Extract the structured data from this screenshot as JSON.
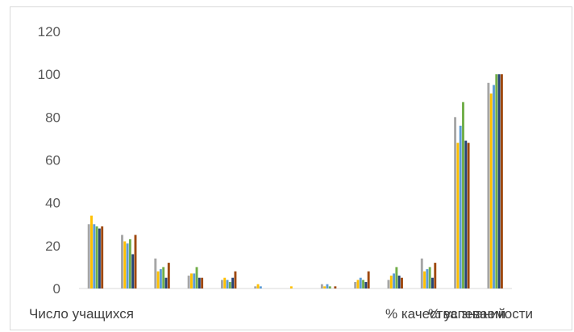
{
  "chart_data": {
    "type": "bar",
    "title": "",
    "xlabel": "",
    "ylabel": "",
    "ylim": [
      0,
      120
    ],
    "yticks": [
      0,
      20,
      40,
      60,
      80,
      100,
      120
    ],
    "grid": false,
    "legend": "none",
    "categories": [
      "Число учащихся",
      "",
      "",
      "",
      "",
      "",
      "",
      "",
      "",
      "",
      "",
      "% качества знаний",
      "% успеваемости"
    ],
    "series": [
      {
        "color": "#a5a5a5",
        "values": [
          30,
          25,
          14,
          6,
          4,
          1,
          0,
          2,
          3,
          4,
          14,
          80,
          96
        ]
      },
      {
        "color": "#ffc000",
        "values": [
          34,
          22,
          8,
          7,
          5,
          2,
          1,
          1,
          4,
          6,
          8,
          68,
          91
        ]
      },
      {
        "color": "#5b9bd5",
        "values": [
          30,
          21,
          9,
          7,
          4,
          1,
          0,
          2,
          5,
          7,
          9,
          76,
          95
        ]
      },
      {
        "color": "#70ad47",
        "values": [
          29,
          23,
          10,
          10,
          3,
          0,
          0,
          1,
          4,
          10,
          10,
          87,
          100
        ]
      },
      {
        "color": "#264478",
        "values": [
          28,
          16,
          5,
          5,
          5,
          0,
          0,
          0,
          3,
          6,
          5,
          69,
          100
        ]
      },
      {
        "color": "#9e480e",
        "values": [
          29,
          25,
          12,
          5,
          8,
          0,
          0,
          1,
          8,
          5,
          12,
          68,
          100
        ]
      }
    ]
  }
}
